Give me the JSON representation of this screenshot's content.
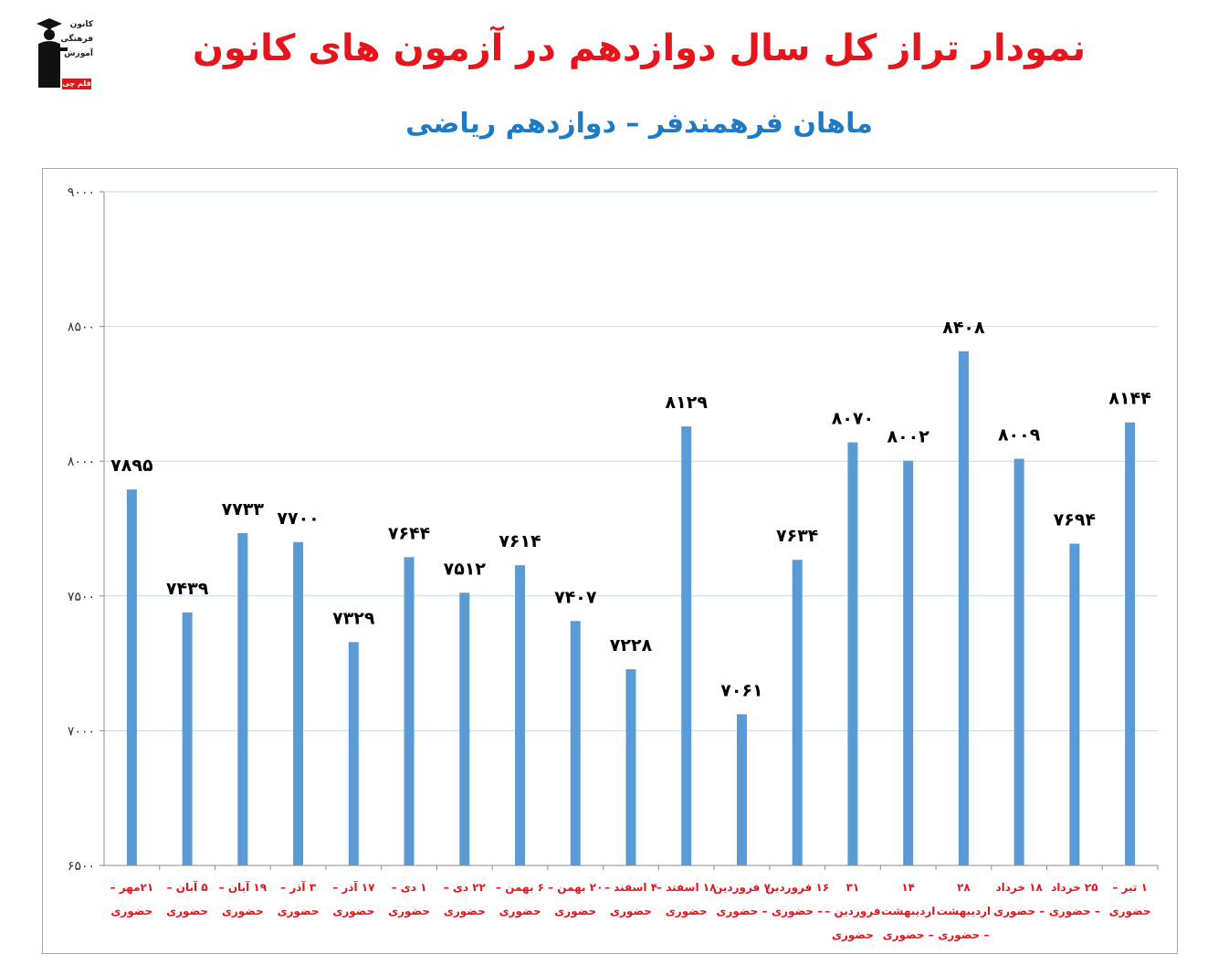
{
  "logo": {
    "line1": "کانون",
    "line2": "فرهنگی",
    "line3": "آموزش",
    "tag": "قلم چی"
  },
  "header": {
    "title": "نمودار تراز کل سال دوازدهم در آزمون های کانون",
    "subtitle": "ماهان فرهمندفر – دوازدهم ریاضی"
  },
  "colors": {
    "title": "#e8141c",
    "subtitle": "#1f7ac6",
    "bar": "#5b9bd5",
    "category_label": "#e8141c",
    "grid": "#c7d9ea"
  },
  "chart_data": {
    "type": "bar",
    "ylim": [
      6500,
      9000
    ],
    "yticks": [
      "۶۵۰۰",
      "۷۰۰۰",
      "۷۵۰۰",
      "۸۰۰۰",
      "۸۵۰۰",
      "۹۰۰۰"
    ],
    "grid": true,
    "legend": "none",
    "categories": [
      [
        "۲۱مهر –",
        "حضوری"
      ],
      [
        "۵ آبان –",
        "حضوری"
      ],
      [
        "۱۹ آبان –",
        "حضوری"
      ],
      [
        "۳ آذر –",
        "حضوری"
      ],
      [
        "۱۷ آذر –",
        "حضوری"
      ],
      [
        "۱ دی –",
        "حضوری"
      ],
      [
        "۲۲ دی –",
        "حضوری"
      ],
      [
        "۶ بهمن –",
        "حضوری"
      ],
      [
        "۲۰ بهمن –",
        "حضوری"
      ],
      [
        "۴ اسفند –",
        "حضوری"
      ],
      [
        "۱۸ اسفند –",
        "حضوری"
      ],
      [
        "۷ فروردین",
        "– حضوری"
      ],
      [
        "۱۶ فروردین",
        "– حضوری"
      ],
      [
        "۳۱",
        "فروردین –",
        "حضوری"
      ],
      [
        "۱۴",
        "اردیبهشت",
        "– حضوری"
      ],
      [
        "۲۸",
        "اردیبهشت",
        "– حضوری"
      ],
      [
        "۱۸ خرداد",
        "– حضوری"
      ],
      [
        "۲۵ خرداد",
        "– حضوری"
      ],
      [
        "۱ تیر –",
        "حضوری"
      ]
    ],
    "values": [
      7895,
      7439,
      7733,
      7700,
      7329,
      7644,
      7512,
      7614,
      7407,
      7228,
      8129,
      7061,
      7634,
      8070,
      8002,
      8408,
      8009,
      7694,
      8144
    ],
    "value_labels": [
      "۷۸۹۵",
      "۷۴۳۹",
      "۷۷۳۳",
      "۷۷۰۰",
      "۷۳۲۹",
      "۷۶۴۴",
      "۷۵۱۲",
      "۷۶۱۴",
      "۷۴۰۷",
      "۷۲۲۸",
      "۸۱۲۹",
      "۷۰۶۱",
      "۷۶۳۴",
      "۸۰۷۰",
      "۸۰۰۲",
      "۸۴۰۸",
      "۸۰۰۹",
      "۷۶۹۴",
      "۸۱۴۴"
    ]
  }
}
